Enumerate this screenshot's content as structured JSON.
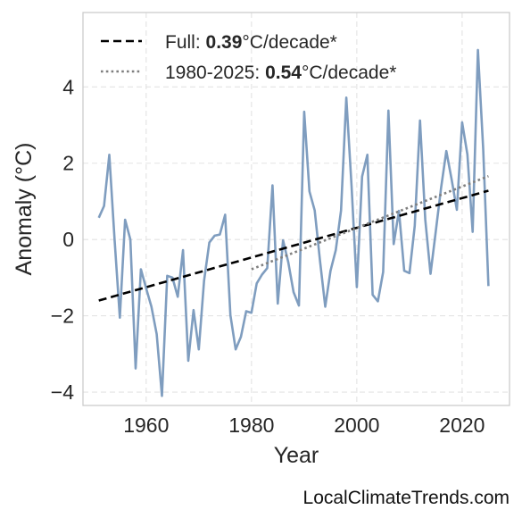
{
  "chart_data": {
    "type": "line",
    "ylabel": "Anomaly (°C)",
    "xlabel": "Year",
    "xlim": [
      1948,
      2029
    ],
    "ylim": [
      -4.35,
      5.95
    ],
    "xticks": [
      1960,
      1980,
      2000,
      2020
    ],
    "yticks": [
      -4,
      -2,
      0,
      2,
      4
    ],
    "ytick_labels": [
      "−4",
      "−2",
      "0",
      "2",
      "4"
    ],
    "grid": true,
    "legend_position": "top-left",
    "colors": {
      "series": "#7f9dbf",
      "full_trend": "#000000",
      "recent_trend": "#7f7f7f"
    },
    "series": [
      {
        "x": [
          1951,
          1952,
          1953,
          1954,
          1955,
          1956,
          1957,
          1958,
          1959,
          1960,
          1961,
          1962,
          1963,
          1964,
          1965,
          1966,
          1967,
          1968,
          1969,
          1970,
          1971,
          1972,
          1973,
          1974,
          1975,
          1976,
          1977,
          1978,
          1979,
          1980,
          1981,
          1982,
          1983,
          1984,
          1985,
          1986,
          1987,
          1988,
          1989,
          1990,
          1991,
          1992,
          1993,
          1994,
          1995,
          1996,
          1997,
          1998,
          1999,
          2000,
          2001,
          2002,
          2003,
          2004,
          2005,
          2006,
          2007,
          2008,
          2009,
          2010,
          2011,
          2012,
          2013,
          2014,
          2015,
          2016,
          2017,
          2018,
          2019,
          2020,
          2021,
          2022,
          2023,
          2024,
          2025
        ],
        "values": [
          0.57,
          0.88,
          2.22,
          0.0,
          -2.05,
          0.52,
          0.0,
          -3.38,
          -0.78,
          -1.28,
          -1.76,
          -2.48,
          -4.1,
          -0.95,
          -1.0,
          -1.5,
          -0.28,
          -3.18,
          -1.85,
          -2.88,
          -1.08,
          -0.08,
          0.1,
          0.13,
          0.65,
          -1.98,
          -2.88,
          -2.55,
          -1.88,
          -1.92,
          -1.15,
          -0.92,
          -0.75,
          1.42,
          -1.68,
          -0.02,
          -0.6,
          -1.38,
          -1.73,
          3.35,
          1.26,
          0.76,
          -0.55,
          -1.76,
          -0.82,
          -0.28,
          0.76,
          3.72,
          1.4,
          -1.25,
          1.65,
          2.22,
          -1.45,
          -1.62,
          -0.85,
          3.38,
          -0.12,
          0.75,
          -0.82,
          -0.88,
          0.36,
          3.12,
          0.52,
          -0.9,
          0.22,
          1.35,
          2.32,
          1.58,
          0.78,
          3.07,
          2.23,
          0.2,
          4.97,
          2.38,
          -1.22
        ]
      }
    ],
    "trend_lines": [
      {
        "label_prefix": "Full: ",
        "label_value": "0.39",
        "label_suffix": "°C/decade*",
        "style": "dashed",
        "x": [
          1951,
          2025
        ],
        "y": [
          -1.6,
          1.28
        ]
      },
      {
        "label_prefix": "1980-2025: ",
        "label_value": "0.54",
        "label_suffix": "°C/decade*",
        "style": "dotted",
        "x": [
          1980,
          2025
        ],
        "y": [
          -0.78,
          1.66
        ]
      }
    ]
  },
  "watermark": "LocalClimateTrends.com"
}
